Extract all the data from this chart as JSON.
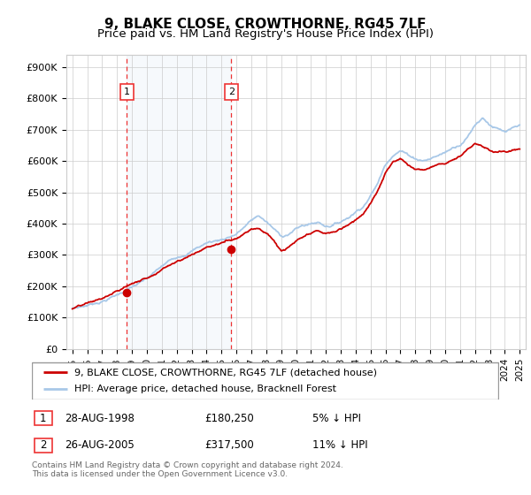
{
  "title": "9, BLAKE CLOSE, CROWTHORNE, RG45 7LF",
  "subtitle": "Price paid vs. HM Land Registry's House Price Index (HPI)",
  "ylabel_ticks": [
    "£0",
    "£100K",
    "£200K",
    "£300K",
    "£400K",
    "£500K",
    "£600K",
    "£700K",
    "£800K",
    "£900K"
  ],
  "ytick_values": [
    0,
    100000,
    200000,
    300000,
    400000,
    500000,
    600000,
    700000,
    800000,
    900000
  ],
  "ylim": [
    0,
    940000
  ],
  "xlim_start": 1994.6,
  "xlim_end": 2025.4,
  "sale1_date": 1998.65,
  "sale1_price": 180250,
  "sale1_label": "1",
  "sale2_date": 2005.65,
  "sale2_price": 317500,
  "sale2_label": "2",
  "hpi_color": "#a8c8e8",
  "price_color": "#cc0000",
  "sale_dot_color": "#cc0000",
  "vline_color": "#ee3333",
  "shade_color": "#dce8f5",
  "grid_color": "#cccccc",
  "background_color": "#ffffff",
  "legend_line1": "9, BLAKE CLOSE, CROWTHORNE, RG45 7LF (detached house)",
  "legend_line2": "HPI: Average price, detached house, Bracknell Forest",
  "table_row1": [
    "1",
    "28-AUG-1998",
    "£180,250",
    "5% ↓ HPI"
  ],
  "table_row2": [
    "2",
    "26-AUG-2005",
    "£317,500",
    "11% ↓ HPI"
  ],
  "footer": "Contains HM Land Registry data © Crown copyright and database right 2024.\nThis data is licensed under the Open Government Licence v3.0.",
  "title_fontsize": 11,
  "subtitle_fontsize": 9.5
}
